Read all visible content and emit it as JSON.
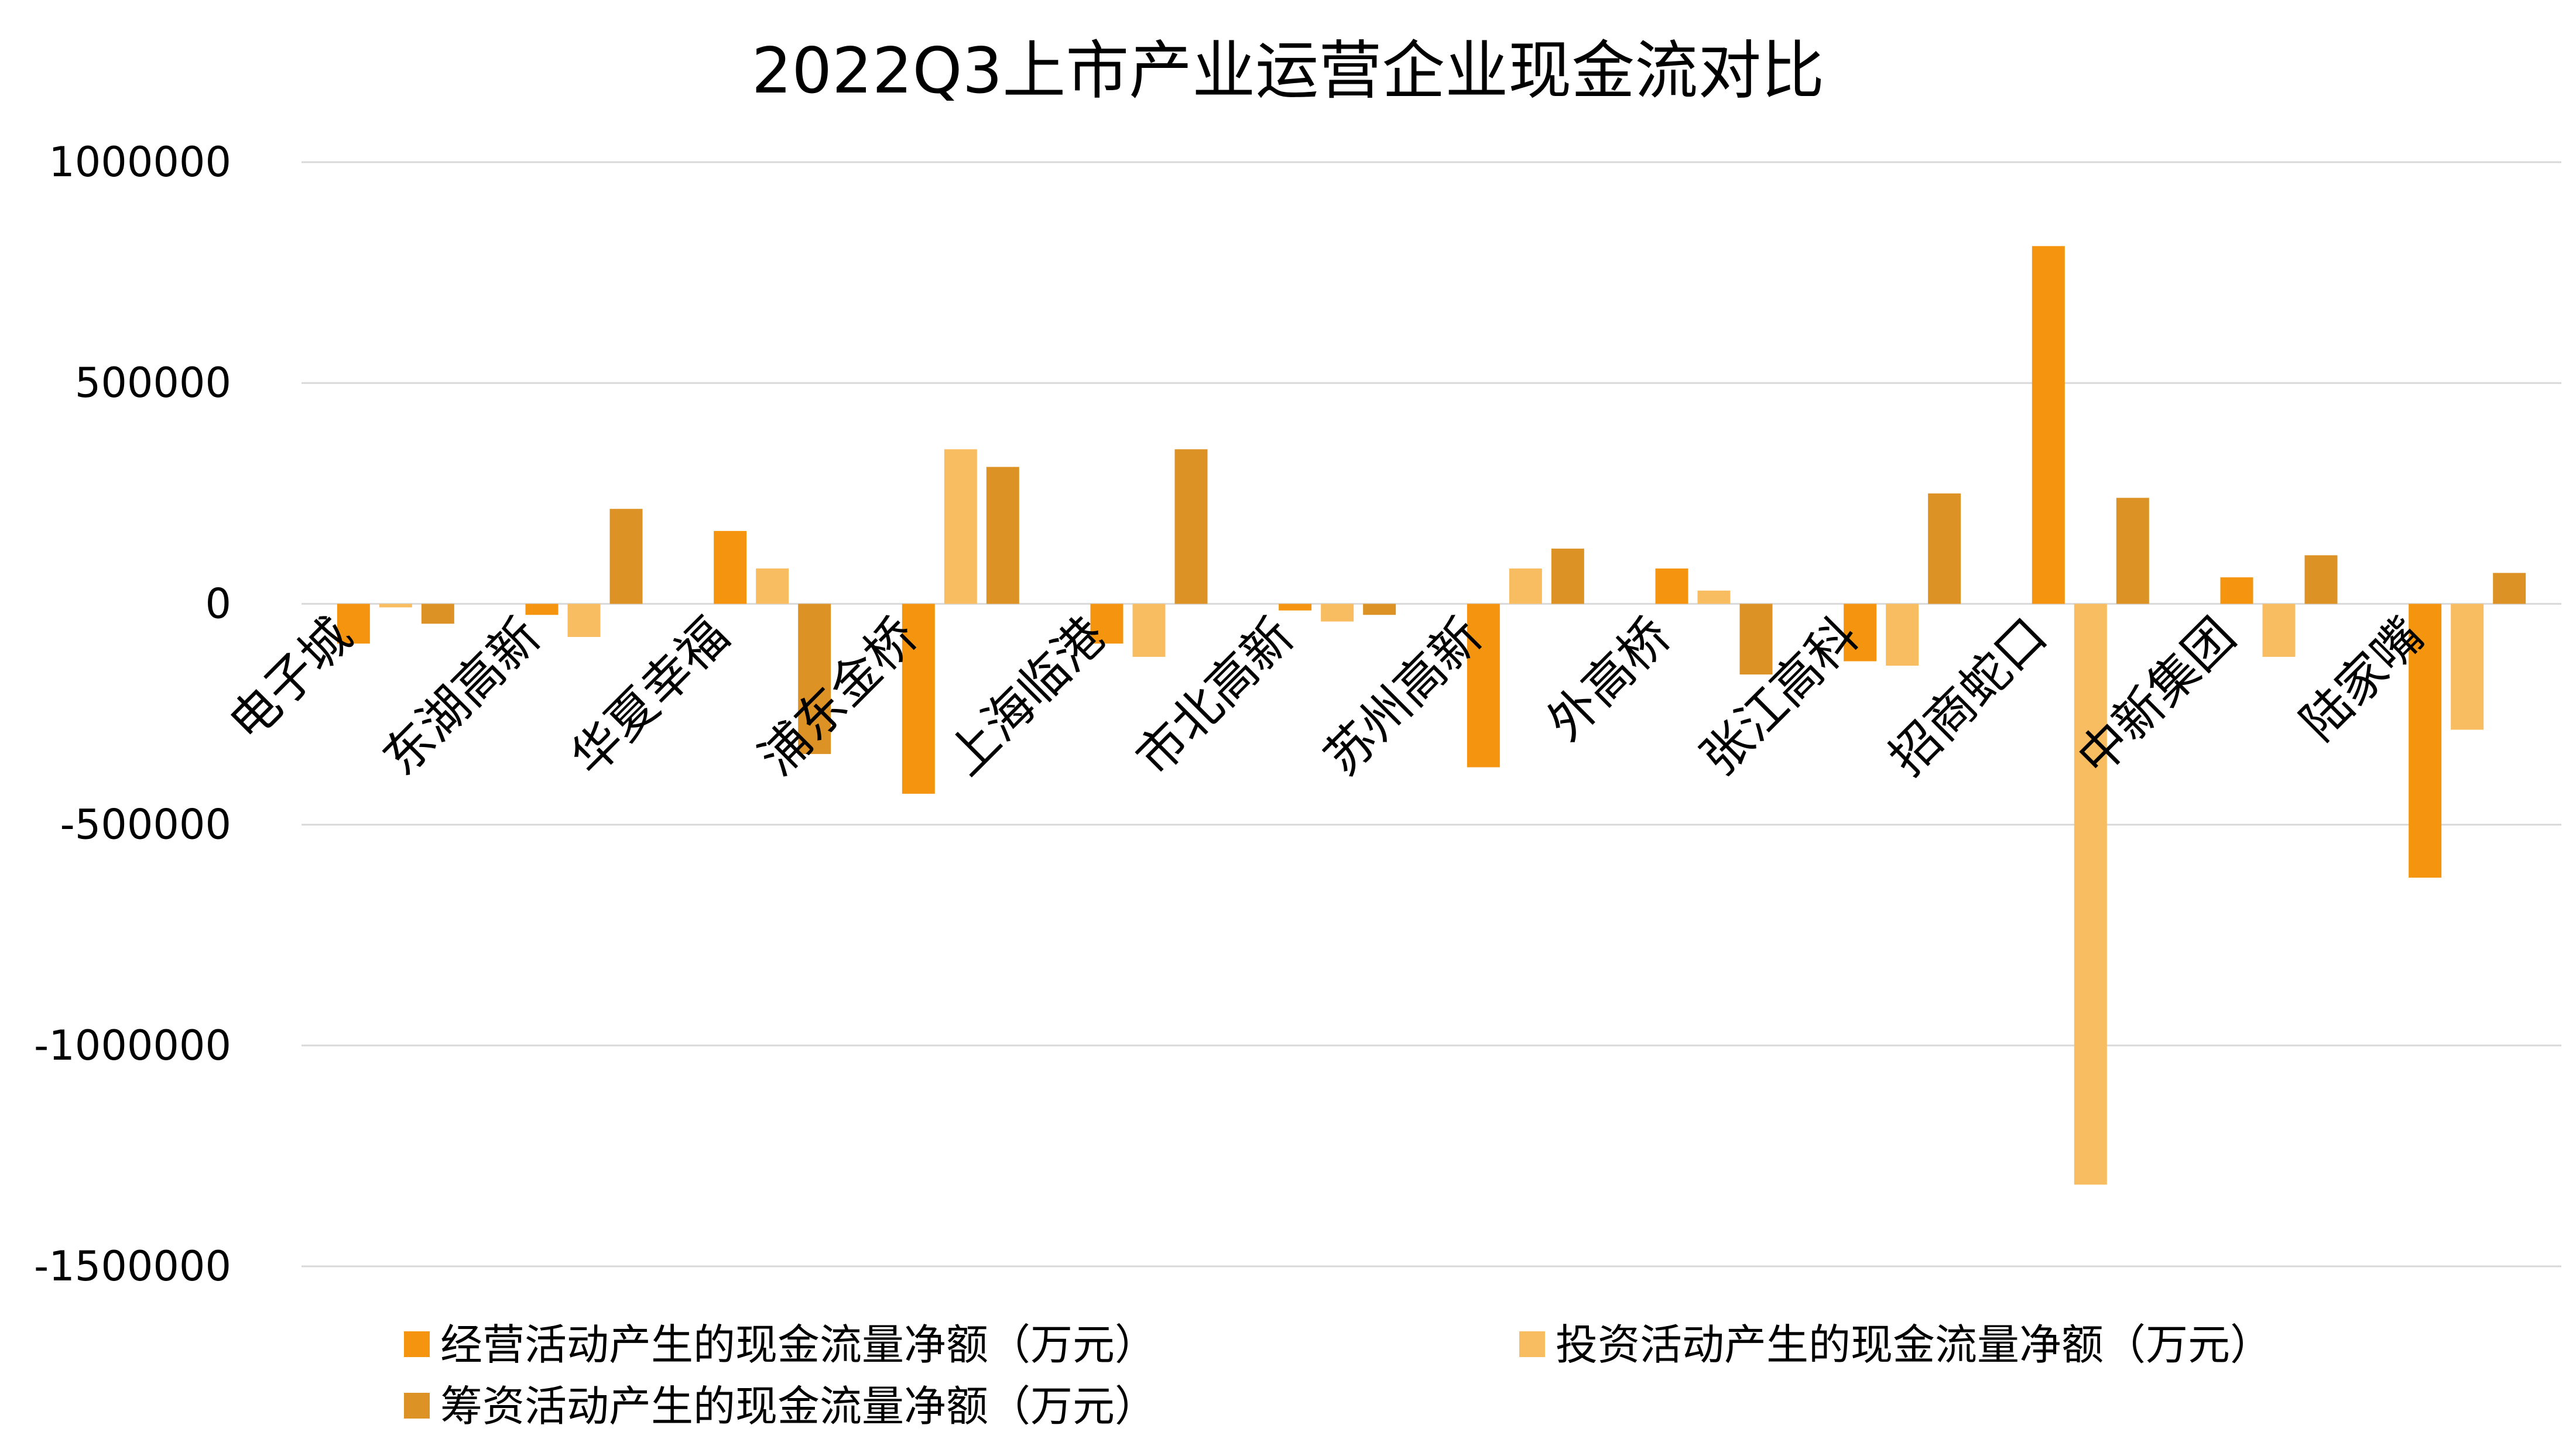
{
  "chart_data": {
    "type": "bar",
    "title": "2022Q3上市产业运营企业现金流对比",
    "xlabel": "",
    "ylabel": "",
    "ylim": [
      -1500000,
      1000000
    ],
    "yticks": [
      1000000,
      500000,
      0,
      -500000,
      -1000000,
      -1500000
    ],
    "ytick_labels": [
      "1000000",
      "500000",
      "0",
      "-500000",
      "-1000000",
      "-1500000"
    ],
    "grid": true,
    "legend_position": "bottom",
    "categories": [
      "电子城",
      "东湖高新",
      "华夏幸福",
      "浦东金桥",
      "上海临港",
      "市北高新",
      "苏州高新",
      "外高桥",
      "张江高科",
      "招商蛇口",
      "中新集团",
      "陆家嘴"
    ],
    "series": [
      {
        "name": "经营活动产生的现金流量净额（万元）",
        "color": "#f5950f",
        "values": [
          -90000,
          -25000,
          165000,
          -430000,
          -90000,
          -15000,
          -370000,
          80000,
          -130000,
          810000,
          60000,
          -620000
        ]
      },
      {
        "name": "投资活动产生的现金流量净额（万元）",
        "color": "#f8bc61",
        "values": [
          -8000,
          -75000,
          80000,
          350000,
          -120000,
          -40000,
          80000,
          30000,
          -140000,
          -1315000,
          -120000,
          -285000
        ]
      },
      {
        "name": "筹资活动产生的现金流量净额（万元）",
        "color": "#dd9225",
        "values": [
          -45000,
          215000,
          -340000,
          310000,
          350000,
          -25000,
          125000,
          -160000,
          250000,
          240000,
          110000,
          70000
        ]
      }
    ]
  }
}
